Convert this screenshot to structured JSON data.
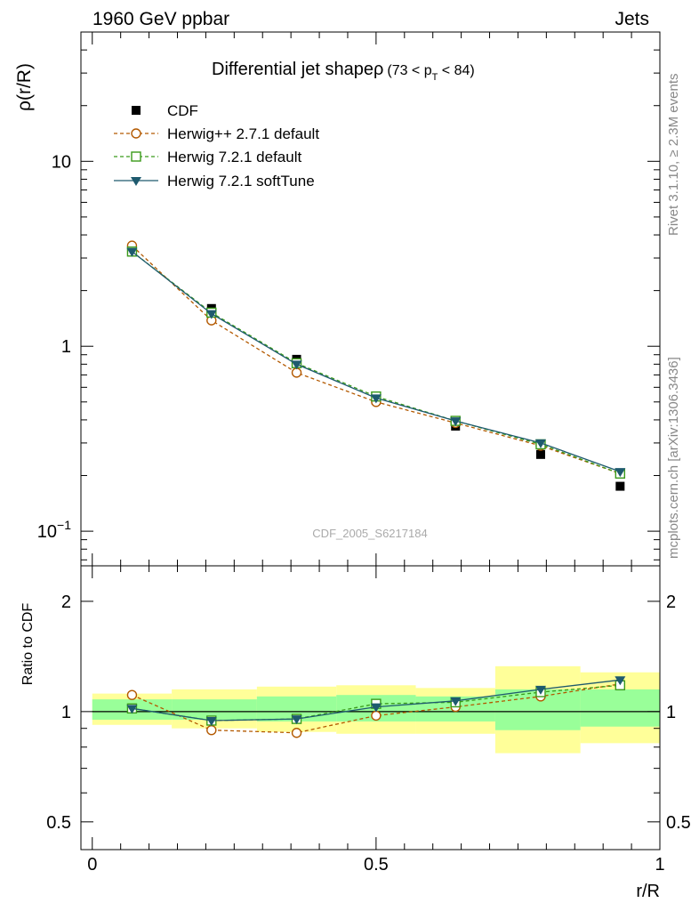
{
  "header": {
    "left": "1960 GeV ppbar",
    "right": "Jets"
  },
  "side_labels": {
    "rivet": "Rivet 3.1.10, ≥ 2.3M events",
    "mcplots": "mcplots.cern.ch [arXiv:1306.3436]"
  },
  "chart_data": [
    {
      "type": "line",
      "title_main": "Differential jet shape",
      "title_rho": "ρ",
      "title_range_open": "(73 < p",
      "title_range_sub": "T",
      "title_range_close": " < 84)",
      "ylabel": "ρ(r/R)",
      "xlabel": "",
      "y_scale": "log",
      "ylim": [
        0.065,
        50
      ],
      "yticks": [
        {
          "value": 0.1,
          "base": "10",
          "exp": "−1"
        },
        {
          "value": 1,
          "label": "1"
        },
        {
          "value": 10,
          "label": "10"
        }
      ],
      "watermark": "CDF_2005_S6217184",
      "legend_position": "top-left",
      "x": [
        0.07,
        0.21,
        0.36,
        0.5,
        0.64,
        0.79,
        0.93
      ],
      "series": [
        {
          "name": "CDF",
          "style": "data",
          "color": "#000000",
          "marker": "square-filled",
          "values": [
            3.3,
            1.6,
            0.85,
            0.51,
            0.37,
            0.26,
            0.175
          ]
        },
        {
          "name": "Herwig++ 2.7.1 default",
          "style": "dashed",
          "color": "#b35900",
          "marker": "circle-open",
          "values": [
            3.5,
            1.38,
            0.72,
            0.5,
            0.385,
            0.29,
            0.205
          ]
        },
        {
          "name": "Herwig 7.2.1 default",
          "style": "dashed",
          "color": "#3a9a1a",
          "marker": "square-open",
          "values": [
            3.25,
            1.52,
            0.81,
            0.535,
            0.395,
            0.295,
            0.205
          ]
        },
        {
          "name": "Herwig 7.2.1 softTune",
          "style": "solid",
          "color": "#1e5a6e",
          "marker": "triangle-down-filled",
          "values": [
            3.25,
            1.5,
            0.8,
            0.525,
            0.395,
            0.3,
            0.21
          ]
        }
      ]
    },
    {
      "type": "line",
      "ylabel": "Ratio to CDF",
      "xlabel": "r/R",
      "y_scale": "log",
      "ylim": [
        0.42,
        2.5
      ],
      "xlim": [
        -0.02,
        1.0
      ],
      "yticks": [
        {
          "value": 0.5,
          "label": "0.5"
        },
        {
          "value": 1,
          "label": "1"
        },
        {
          "value": 2,
          "label": "2"
        }
      ],
      "xticks": [
        {
          "value": 0,
          "label": "0"
        },
        {
          "value": 0.5,
          "label": "0.5"
        },
        {
          "value": 1,
          "label": "1"
        }
      ],
      "bin_edges": [
        0.0,
        0.14,
        0.29,
        0.43,
        0.57,
        0.71,
        0.86,
        1.0
      ],
      "band_outer": [
        [
          0.92,
          1.12
        ],
        [
          0.9,
          1.15
        ],
        [
          0.88,
          1.17
        ],
        [
          0.87,
          1.18
        ],
        [
          0.87,
          1.16
        ],
        [
          0.77,
          1.33
        ],
        [
          0.82,
          1.28
        ]
      ],
      "band_inner": [
        [
          0.95,
          1.08
        ],
        [
          0.95,
          1.08
        ],
        [
          0.94,
          1.1
        ],
        [
          0.94,
          1.11
        ],
        [
          0.94,
          1.1
        ],
        [
          0.89,
          1.15
        ],
        [
          0.91,
          1.15
        ]
      ],
      "x": [
        0.07,
        0.21,
        0.36,
        0.5,
        0.64,
        0.79,
        0.93
      ],
      "series": [
        {
          "name": "Herwig++ 2.7.1 default",
          "style": "dashed",
          "color": "#b35900",
          "marker": "circle-open",
          "values": [
            1.11,
            0.89,
            0.875,
            0.975,
            1.03,
            1.1,
            1.19
          ]
        },
        {
          "name": "Herwig 7.2.1 default",
          "style": "dashed",
          "color": "#3a9a1a",
          "marker": "square-open",
          "values": [
            1.02,
            0.945,
            0.955,
            1.05,
            1.06,
            1.13,
            1.18
          ]
        },
        {
          "name": "Herwig 7.2.1 softTune",
          "style": "solid",
          "color": "#1e5a6e",
          "marker": "triangle-down-filled",
          "values": [
            1.02,
            0.945,
            0.955,
            1.03,
            1.07,
            1.15,
            1.22
          ]
        }
      ]
    }
  ]
}
